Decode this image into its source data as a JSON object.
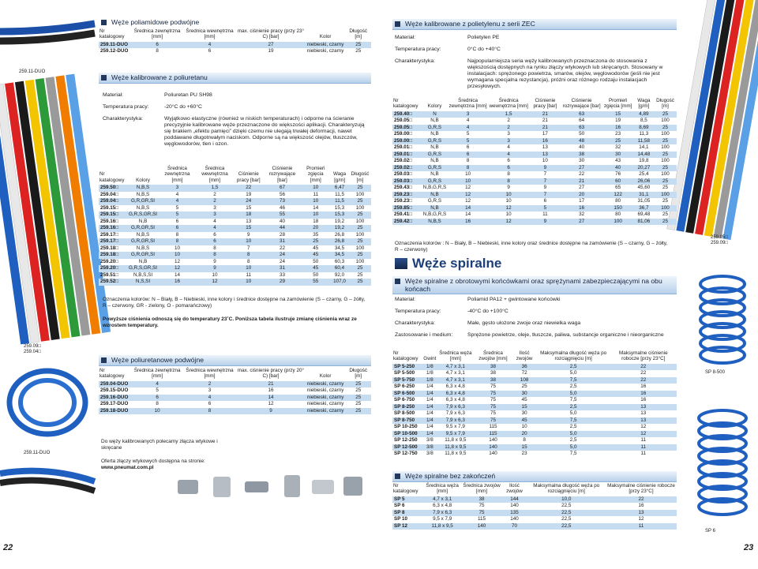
{
  "left_page": {
    "page_number": "22",
    "side_label_top": "259.11-DUO",
    "side_label_mid": [
      "259.09□",
      "259.04□"
    ],
    "side_label_bottom": "259.11-DUO",
    "polyamide_duo": {
      "title": "Węże poliamidowe podwójne",
      "table": {
        "headers": [
          "Nr katalogowy",
          "Średnica zewnętrzna [mm]",
          "Średnica wewnętrzna [mm]",
          "max. ciśnienie pracy (przy 23° C) [bar]",
          "Kolor",
          "Długość [m]"
        ],
        "rows": [
          [
            "259.11-DUO",
            "6",
            "4",
            "27",
            "niebieski, czarny",
            "25"
          ],
          [
            "259.12-DUO",
            "8",
            "6",
            "19",
            "niebieski, czarny",
            "25"
          ]
        ]
      }
    },
    "pu_calibrated": {
      "title": "Węże kalibrowane z poliuretanu",
      "fields": [
        {
          "label": "Materiał:",
          "value": "Poliuretan PU SH98"
        },
        {
          "label": "Temperatura pracy:",
          "value": "-20°C do +60°C"
        },
        {
          "label": "Charakterystyka:",
          "value": "Wyjątkowo elastyczne (również w niskich temperaturach) i odporne na ścieranie precyzyjnie kalibrowane węże przeznaczone do większości aplikacji. Charakteryzują się brakiem „efektu pamięci” dzięki czemu nie ulegają trwałej deformacji, nawet poddawane długotrwałym naciskom. Odporne są na większość olejów, tłuszczów, węglowodorów, tlen i ozon."
        }
      ],
      "table": {
        "headers": [
          "Nr katalogowy",
          "Kolory",
          "Średnica zewnętrzna [mm]",
          "Średnica wewnętrzna [mm]",
          "Ciśnienie pracy [bar]",
          "Ciśnienie rozrywające [bar]",
          "Promień zgięcia [mm]",
          "Waga [g/m]",
          "Długość [m]"
        ],
        "rows": [
          [
            "259.50□",
            "N,B,S",
            "3",
            "1,5",
            "22",
            "67",
            "10",
            "6,47",
            "25"
          ],
          [
            "259.04□",
            "N,B,S",
            "4",
            "2",
            "19",
            "56",
            "11",
            "11,5",
            "100"
          ],
          [
            "259.04□",
            "G,R,GR,SI",
            "4",
            "2",
            "24",
            "73",
            "10",
            "11,5",
            "25"
          ],
          [
            "259.15□",
            "N,B,S",
            "5",
            "3",
            "15",
            "46",
            "14",
            "15,3",
            "100"
          ],
          [
            "259.15□",
            "G,R,S,GR,SI",
            "5",
            "3",
            "18",
            "55",
            "10",
            "15,3",
            "25"
          ],
          [
            "259.16□",
            "N,B",
            "6",
            "4",
            "13",
            "40",
            "18",
            "19,2",
            "100"
          ],
          [
            "259.16□",
            "G,R,GR,SI",
            "6",
            "4",
            "15",
            "44",
            "20",
            "19,2",
            "25"
          ],
          [
            "259.17□",
            "N,B,S",
            "8",
            "6",
            "9",
            "28",
            "35",
            "26,8",
            "100"
          ],
          [
            "259.17□",
            "G,R,GR,SI",
            "8",
            "6",
            "10",
            "31",
            "25",
            "26,8",
            "25"
          ],
          [
            "259.18□",
            "N,B,S",
            "10",
            "8",
            "7",
            "22",
            "45",
            "34,5",
            "100"
          ],
          [
            "259.18□",
            "G,R,GR,SI",
            "10",
            "8",
            "8",
            "24",
            "45",
            "34,5",
            "25"
          ],
          [
            "259.20□",
            "N,B",
            "12",
            "9",
            "8",
            "24",
            "50",
            "60,3",
            "100"
          ],
          [
            "259.20□",
            "G,R,S,GR,SI",
            "12",
            "9",
            "10",
            "31",
            "45",
            "60,4",
            "25"
          ],
          [
            "259.51□",
            "N,B,S,SI",
            "14",
            "10",
            "11",
            "33",
            "50",
            "92,0",
            "25"
          ],
          [
            "259.52□",
            "N,S,SI",
            "16",
            "12",
            "10",
            "29",
            "55",
            "107,0",
            "25"
          ]
        ]
      },
      "color_note": "Oznaczenia kolorów: N – Biały, B – Niebieski, inne kolory i średnice dostępne na zamówienie (S – czarny, G – żółty, R – czerwony, GR - zielony, O - pomarańczowy)",
      "pressure_note": "Powyższe ciśnienia odnoszą się do temperatury 23˚C. Poniższa tabela ilustruje zmianę ciśnienia wraz ze wzrostem temperatury."
    },
    "pu_duo": {
      "title": "Węże poliuretanowe podwójne",
      "table": {
        "headers": [
          "Nr katalogowy",
          "Średnica zewnętrzna [mm]",
          "Średnica wewnętrzna [mm]",
          "max. ciśnienie pracy (przy 20° C) [bar]",
          "Kolor",
          "Długość [m]"
        ],
        "rows": [
          [
            "259.04-DUO",
            "4",
            "2",
            "21",
            "niebieski, czarny",
            "25"
          ],
          [
            "259.15-DUO",
            "5",
            "3",
            "16",
            "niebieski, czarny",
            "25"
          ],
          [
            "259.16-DUO",
            "6",
            "4",
            "14",
            "niebieski, czarny",
            "25"
          ],
          [
            "259.17-DUO",
            "8",
            "6",
            "12",
            "niebieski, czarny",
            "25"
          ],
          [
            "259.18-DUO",
            "10",
            "8",
            "9",
            "niebieski, czarny",
            "25"
          ]
        ]
      }
    },
    "fittings_text": "Do węży kalibrowanych polecamy złącza wtykowe i skręcane",
    "offer_text": "Oferta złączy wtykowych dostępna na stronie:",
    "offer_link": "www.pneumat.com.pl"
  },
  "right_page": {
    "page_number": "23",
    "side_label_top": [
      "259.05□",
      "259.09□"
    ],
    "side_label_mid": "SP 8-500",
    "side_label_bottom": "SP 6",
    "pe_zec": {
      "title": "Węże kalibrowane z polietylenu z serii ZEC",
      "fields": [
        {
          "label": "Materiał:",
          "value": "Polietylen PE"
        },
        {
          "label": "Temperatura pracy:",
          "value": "0°C do +40°C"
        },
        {
          "label": "Charakterystyka:",
          "value": "Najpopularniejsza seria węży kalibrowanych przeznaczona do stosowania z większością dostępnych na rynku złączy wtykowych lub skręcanych. Stosowany w instalacjach: sprężonego powietrza, smarów, olejów, węglowodorów (jeśli nie jest wymagana specjalna rezystancja), próżni oraz różnego rodzaju instalacjach przesyłowych."
        }
      ],
      "table": {
        "headers": [
          "Nr katalogowy",
          "Kolory",
          "Średnica zewnętrzna [mm]",
          "Średnica wewnętrzna [mm]",
          "Ciśnienie pracy [bar]",
          "Ciśnienie rozrywające [bar]",
          "Promień zgięcia [mm]",
          "Waga [g/m]",
          "Długość [m]"
        ],
        "rows": [
          [
            "259.40□",
            "N",
            "3",
            "1,5",
            "21",
            "63",
            "15",
            "4,89",
            "25"
          ],
          [
            "259.05□",
            "N,B",
            "4",
            "2",
            "21",
            "64",
            "19",
            "8,5",
            "100"
          ],
          [
            "259.05□",
            "G,R,S",
            "4",
            "2",
            "21",
            "63",
            "16",
            "8,69",
            "25"
          ],
          [
            "259.00□",
            "N,B",
            "5",
            "3",
            "17",
            "50",
            "23",
            "11,3",
            "100"
          ],
          [
            "259.00□",
            "G,R,S",
            "5",
            "3",
            "16",
            "48",
            "25",
            "11,58",
            "25"
          ],
          [
            "259.01□",
            "N,B",
            "6",
            "4",
            "13",
            "40",
            "32",
            "14,1",
            "100"
          ],
          [
            "259.01□",
            "G,R,S",
            "6",
            "4",
            "13",
            "38",
            "30",
            "14,48",
            "25"
          ],
          [
            "259.02□",
            "N,B",
            "8",
            "6",
            "10",
            "30",
            "43",
            "19,8",
            "100"
          ],
          [
            "259.02□",
            "G,R,S",
            "8",
            "6",
            "9",
            "27",
            "40",
            "20,27",
            "25"
          ],
          [
            "259.03□",
            "N,B",
            "10",
            "8",
            "7",
            "22",
            "76",
            "25,4",
            "100"
          ],
          [
            "259.03□",
            "G,R,S",
            "10",
            "8",
            "7",
            "21",
            "60",
            "26,06",
            "25"
          ],
          [
            "259.43□",
            "N,B,G,R,S",
            "12",
            "9",
            "9",
            "27",
            "65",
            "45,60",
            "25"
          ],
          [
            "259.23□",
            "N,B",
            "12",
            "10",
            "7",
            "20",
            "122",
            "31,1",
            "100"
          ],
          [
            "259.23□",
            "G,R,S",
            "12",
            "10",
            "6",
            "17",
            "80",
            "31,05",
            "25"
          ],
          [
            "259.85□",
            "N,B",
            "14",
            "12",
            "5",
            "16",
            "150",
            "36,7",
            "100"
          ],
          [
            "259.41□",
            "N,B,G,R,S",
            "14",
            "10",
            "11",
            "32",
            "80",
            "69,48",
            "25"
          ],
          [
            "259.42□",
            "N,B,S",
            "16",
            "12",
            "9",
            "27",
            "100",
            "81,06",
            "25"
          ]
        ]
      },
      "color_note": "Oznaczenia kolorów : N – Biały, B – Niebieski, inne kolory oraz średnice dostępne na zamówienie (S – czarny, G – żółty, R – czerwony)"
    },
    "spiral_title": "Węże spiralne",
    "spiral_swivel": {
      "title": "Węże spiralne z obrotowymi końcówkami oraz sprężynami zabezpieczającymi na obu końcach",
      "fields": [
        {
          "label": "Materiał:",
          "value": "Poliamid PA12 + gwintowane końcówki"
        },
        {
          "label": "Temperatura pracy:",
          "value": "-40°C do +100°C"
        },
        {
          "label": "Charakterystyka:",
          "value": "Małe, gęsto ułożone zwoje oraz niewielka waga"
        },
        {
          "label": "Zastosowanie i medium:",
          "value": "Sprężone powietrze, oleje, tłuszcze, paliwa, substancje organiczne i nieorganiczne"
        }
      ],
      "table": {
        "headers": [
          "Nr katalogowy",
          "Gwint",
          "Średnica węża [mm]",
          "Średnica zwojów [mm]",
          "Ilość zwojów",
          "Maksymalna długość węża po rozciągnięciu [m]",
          "Maksymalne ciśnienie robocze [przy 23°C]"
        ],
        "rows": [
          [
            "SP 5-250",
            "1/8",
            "4,7 x 3,1",
            "38",
            "36",
            "2,5",
            "22"
          ],
          [
            "SP 5-500",
            "1/8",
            "4,7 x 3,1",
            "38",
            "72",
            "5,0",
            "22"
          ],
          [
            "SP 5-750",
            "1/8",
            "4,7 x 3,1",
            "38",
            "108",
            "7,5",
            "22"
          ],
          [
            "SP 6-250",
            "1/4",
            "6,3 x 4,8",
            "75",
            "25",
            "2,5",
            "16"
          ],
          [
            "SP 6-500",
            "1/4",
            "6,3 x 4,8",
            "75",
            "30",
            "5,0",
            "16"
          ],
          [
            "SP 6-750",
            "1/4",
            "6,3 x 4,8",
            "75",
            "45",
            "7,5",
            "16"
          ],
          [
            "SP 8-250",
            "1/4",
            "7,9 x 6,3",
            "75",
            "15",
            "2,5",
            "13"
          ],
          [
            "SP 8-500",
            "1/4",
            "7,9 x 6,3",
            "75",
            "30",
            "5,0",
            "13"
          ],
          [
            "SP 8-750",
            "1/4",
            "7,9 x 6,3",
            "75",
            "45",
            "7,5",
            "13"
          ],
          [
            "SP 10-250",
            "1/4",
            "9,5 x 7,9",
            "115",
            "10",
            "2,5",
            "12"
          ],
          [
            "SP 10-500",
            "1/4",
            "9,5 x 7,9",
            "115",
            "20",
            "5,0",
            "12"
          ],
          [
            "SP 12-250",
            "3/8",
            "11,8 x 9,5",
            "140",
            "8",
            "2,5",
            "11"
          ],
          [
            "SP 12-500",
            "3/8",
            "11,8 x 9,5",
            "140",
            "15",
            "5,0",
            "11"
          ],
          [
            "SP 12-750",
            "3/8",
            "11,8 x 9,5",
            "140",
            "23",
            "7,5",
            "11"
          ]
        ]
      }
    },
    "spiral_plain": {
      "title": "Węże spiralne bez zakończeń",
      "table": {
        "headers": [
          "Nr katalogowy",
          "Średnica węża [mm]",
          "Średnica zwojów [mm]",
          "Ilość zwojów",
          "Maksymalna długość węża po rozciągnięciu [m]",
          "Maksymalne ciśnienie robocze [przy 23°C]"
        ],
        "rows": [
          [
            "SP 5",
            "4,7 x 3,1",
            "38",
            "144",
            "10,0",
            "22"
          ],
          [
            "SP 6",
            "6,3 x 4,8",
            "75",
            "140",
            "22,5",
            "16"
          ],
          [
            "SP 8",
            "7,9 x 6,3",
            "75",
            "135",
            "22,5",
            "13"
          ],
          [
            "SP 10",
            "9,5 x 7,9",
            "115",
            "140",
            "22,5",
            "12"
          ],
          [
            "SP 12",
            "11,8 x 9,5",
            "140",
            "70",
            "22,5",
            "11"
          ]
        ]
      }
    }
  }
}
